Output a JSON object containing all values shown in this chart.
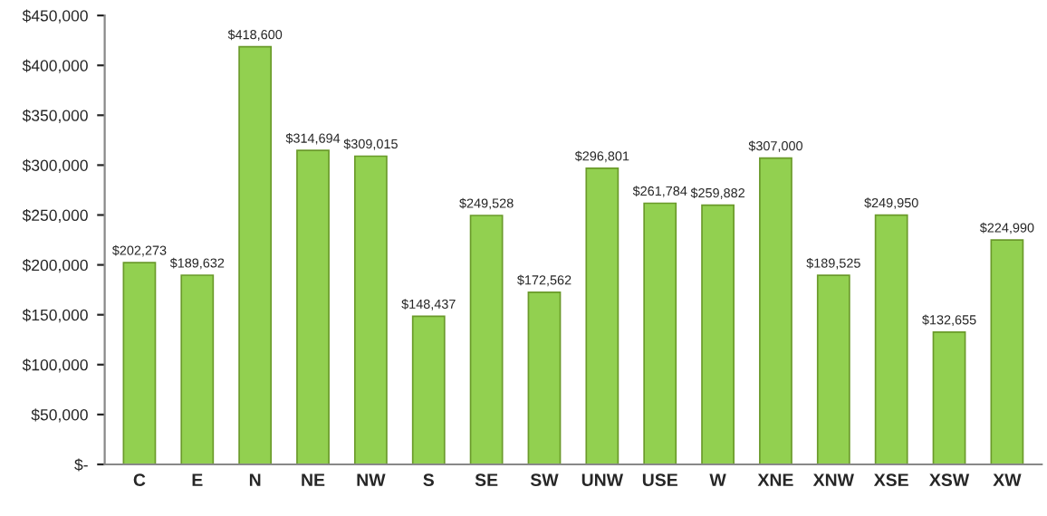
{
  "chart_data": {
    "type": "bar",
    "categories": [
      "C",
      "E",
      "N",
      "NE",
      "NW",
      "S",
      "SE",
      "SW",
      "UNW",
      "USE",
      "W",
      "XNE",
      "XNW",
      "XSE",
      "XSW",
      "XW"
    ],
    "values": [
      202273,
      189632,
      418600,
      314694,
      309015,
      148437,
      249528,
      172562,
      296801,
      261784,
      259882,
      307000,
      189525,
      249950,
      132655,
      224990
    ],
    "value_labels": [
      "$202,273",
      "$189,632",
      "$418,600",
      "$314,694",
      "$309,015",
      "$148,437",
      "$249,528",
      "$172,562",
      "$296,801",
      "$261,784",
      "$259,882",
      "$307,000",
      "$189,525",
      "$249,950",
      "$132,655",
      "$224,990"
    ],
    "color": "#92d050",
    "ylim": [
      0,
      450000
    ],
    "yticks": [
      {
        "value": 0,
        "label": "$-"
      },
      {
        "value": 50000,
        "label": "$50,000"
      },
      {
        "value": 100000,
        "label": "$100,000"
      },
      {
        "value": 150000,
        "label": "$150,000"
      },
      {
        "value": 200000,
        "label": "$200,000"
      },
      {
        "value": 250000,
        "label": "$250,000"
      },
      {
        "value": 300000,
        "label": "$300,000"
      },
      {
        "value": 350000,
        "label": "$350,000"
      },
      {
        "value": 400000,
        "label": "$400,000"
      },
      {
        "value": 450000,
        "label": "$450,000"
      }
    ],
    "grid": false,
    "legend": false
  }
}
